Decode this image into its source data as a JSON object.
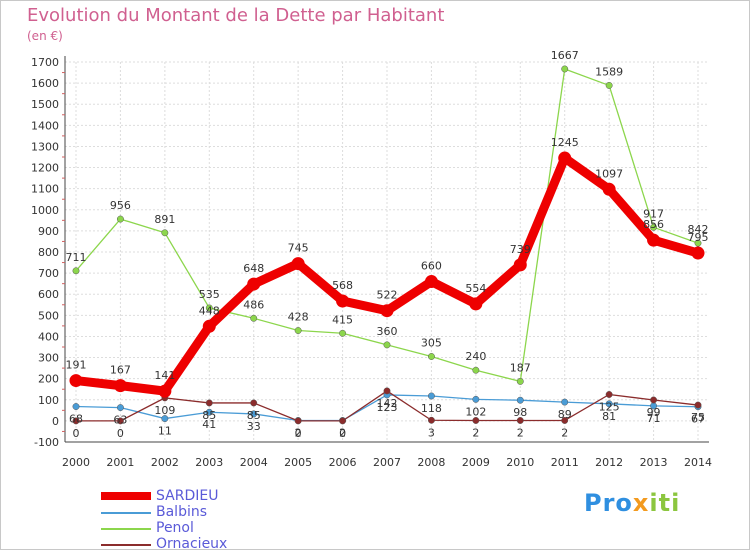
{
  "chart_data": {
    "type": "line",
    "title": "Evolution du Montant de la Dette par Habitant",
    "subtitle": "(en €)",
    "x": [
      "2000",
      "2001",
      "2002",
      "2003",
      "2004",
      "2005",
      "2006",
      "2007",
      "2008",
      "2009",
      "2010",
      "2011",
      "2012",
      "2013",
      "2014"
    ],
    "ylim": [
      -100,
      1700
    ],
    "yticks": [
      -100,
      0,
      100,
      200,
      300,
      400,
      500,
      600,
      700,
      800,
      900,
      1000,
      1100,
      1200,
      1300,
      1400,
      1500,
      1600,
      1700
    ],
    "grid": true,
    "legend_position": "bottom-left",
    "series": [
      {
        "name": "SARDIEU",
        "color": "#ee0000",
        "values": [
          191,
          167,
          141,
          448,
          648,
          745,
          568,
          522,
          660,
          554,
          739,
          1245,
          1097,
          856,
          795
        ],
        "labels": [
          "191",
          "167",
          "141",
          "448",
          "648",
          "745",
          "568",
          "522",
          "660",
          "554",
          "739",
          "1245",
          "1097",
          "856",
          "795"
        ]
      },
      {
        "name": "Balbins",
        "color": "#4a9cd6",
        "values": [
          68,
          63,
          11,
          41,
          33,
          2,
          2,
          123,
          118,
          102,
          98,
          89,
          81,
          71,
          67
        ],
        "labels": [
          "68",
          "63",
          "11",
          "41",
          "33",
          "2",
          "2",
          "123",
          "118",
          "102",
          "98",
          "89",
          "81",
          "71",
          "67"
        ]
      },
      {
        "name": "Penol",
        "color": "#8cd64c",
        "values": [
          711,
          956,
          891,
          535,
          486,
          428,
          415,
          360,
          305,
          240,
          187,
          1667,
          1589,
          917,
          842
        ],
        "labels": [
          "711",
          "956",
          "891",
          "535",
          "486",
          "428",
          "415",
          "360",
          "305",
          "240",
          "187",
          "1667",
          "1589",
          "917",
          "842"
        ]
      },
      {
        "name": "Ornacieux",
        "color": "#8b2c2c",
        "values": [
          0,
          0,
          109,
          85,
          85,
          0,
          0,
          142,
          3,
          2,
          2,
          2,
          125,
          99,
          75
        ],
        "labels": [
          "0",
          "0",
          "109",
          "85",
          "85",
          "0",
          "0",
          "142",
          "3",
          "2",
          "2",
          "2",
          "125",
          "99",
          "75"
        ]
      }
    ]
  },
  "branding": {
    "part1": "Pro",
    "part2": "x",
    "part3": "iti"
  }
}
